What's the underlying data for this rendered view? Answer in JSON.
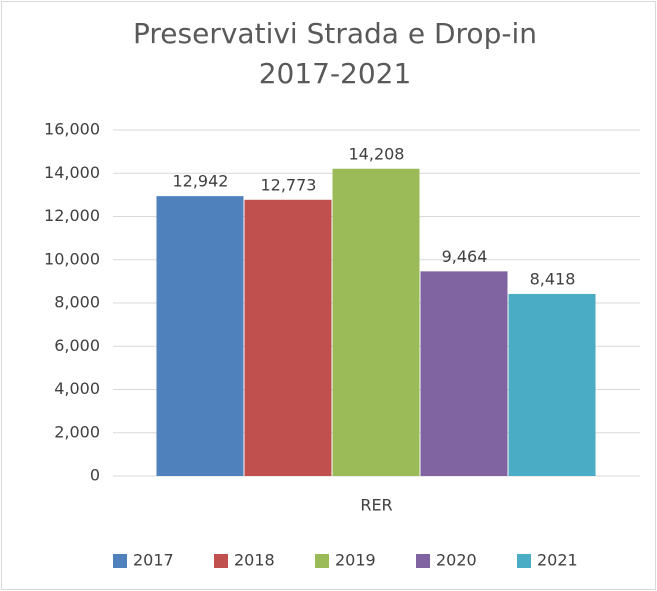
{
  "chart_data": {
    "type": "bar",
    "title": "Preservativi Strada e Drop-in 2017-2021",
    "categories": [
      "RER"
    ],
    "series": [
      {
        "name": "2017",
        "color": "#4f81bd",
        "values": [
          12942
        ],
        "value_labels": [
          "12,942"
        ]
      },
      {
        "name": "2018",
        "color": "#c0504d",
        "values": [
          12773
        ],
        "value_labels": [
          "12,773"
        ]
      },
      {
        "name": "2019",
        "color": "#9bbb59",
        "values": [
          14208
        ],
        "value_labels": [
          "14,208"
        ]
      },
      {
        "name": "2020",
        "color": "#8064a2",
        "values": [
          9464
        ],
        "value_labels": [
          "9,464"
        ]
      },
      {
        "name": "2021",
        "color": "#4bacc6",
        "values": [
          8418
        ],
        "value_labels": [
          "8,418"
        ]
      }
    ],
    "ylim": [
      0,
      16000
    ],
    "yticks": [
      0,
      {
        "value": 2000,
        "label": "2,000"
      },
      {
        "value": 4000,
        "label": "4,000"
      },
      {
        "value": 6000,
        "label": "6,000"
      },
      {
        "value": 8000,
        "label": "8,000"
      },
      {
        "value": 10000,
        "label": "10,000"
      },
      {
        "value": 12000,
        "label": "12,000"
      },
      {
        "value": 14000,
        "label": "14,000"
      },
      {
        "value": 16000,
        "label": "16,000"
      }
    ],
    "grid": true,
    "legend": "bottom"
  }
}
